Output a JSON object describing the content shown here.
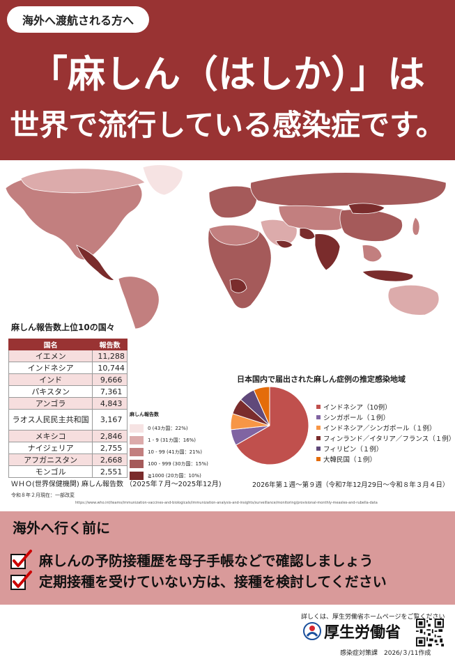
{
  "header": {
    "tag": "海外へ渡航される方へ",
    "headline_line1": "「麻しん（はしか）」は",
    "headline_line2": "世界で流行している感染症です。"
  },
  "top10": {
    "title": "麻しん報告数上位10の国々",
    "columns": [
      "国名",
      "報告数"
    ],
    "rows": [
      {
        "country": "イエメン",
        "count": "11,288"
      },
      {
        "country": "インドネシア",
        "count": "10,744"
      },
      {
        "country": "インド",
        "count": "9,666"
      },
      {
        "country": "パキスタン",
        "count": "7,361"
      },
      {
        "country": "アンゴラ",
        "count": "4,843"
      },
      {
        "country": "ラオス人民民主共和国",
        "count": "3,167"
      },
      {
        "country": "メキシコ",
        "count": "2,846"
      },
      {
        "country": "ナイジェリア",
        "count": "2,755"
      },
      {
        "country": "アフガニスタン",
        "count": "2,668"
      },
      {
        "country": "モンゴル",
        "count": "2,551"
      }
    ]
  },
  "map_legend": {
    "title": "麻しん報告数",
    "items": [
      {
        "label": "0 (43カ国：22%)",
        "color": "#f6e3e3"
      },
      {
        "label": "1 - 9 (31カ国：16%)",
        "color": "#dcabab"
      },
      {
        "label": "10 - 99 (41カ国：21%)",
        "color": "#c27f7f"
      },
      {
        "label": "100 - 999 (30カ国：15%)",
        "color": "#a55a5a"
      },
      {
        "label": "≧1000 (20カ国：10%)",
        "color": "#7a2c2c"
      }
    ]
  },
  "sources": {
    "who": "ＷＨＯ(世界保健機関) 麻しん報告数 （2025年７月～2025年12月)",
    "as_of": "令和８年２月現在：一部改変",
    "url": "https://www.who.int/teams/immunization-vaccines-and-biologicals/immunization-analysis-and-insights/surveillance/monitoring/provisional-monthly-measles-and-rubella-data"
  },
  "chart_data": {
    "type": "pie",
    "title": "日本国内で届出された麻しん症例の推定感染地域",
    "categories": [
      "インドネシア（10例）",
      "シンガポール（１例）",
      "インドネシア／シンガポール（１例）",
      "フィンランド／イタリア／フランス（１例）",
      "フィリピン（１例）",
      "大韓民国（１例）"
    ],
    "values": [
      10,
      1,
      1,
      1,
      1,
      1
    ],
    "colors": [
      "#c0504d",
      "#8064a2",
      "#f79646",
      "#7a2c2c",
      "#60497a",
      "#e46c0a"
    ],
    "legend": "right",
    "period": "2026年第１週～第９週（令和7年12月29日～令和８年３月４日）"
  },
  "advice": {
    "title": "海外へ行く前に",
    "items": [
      "麻しんの予防接種歴を母子手帳などで確認しましょう",
      "定期接種を受けていない方は、接種を検討してください"
    ]
  },
  "footer": {
    "details": "詳しくは、厚生労働省ホームページをご覧ください",
    "ministry": "厚生労働省",
    "dept": "感染症対策課　2026/３/11作成"
  },
  "colors": {
    "brand": "#993333",
    "panel": "#d99a9a"
  }
}
